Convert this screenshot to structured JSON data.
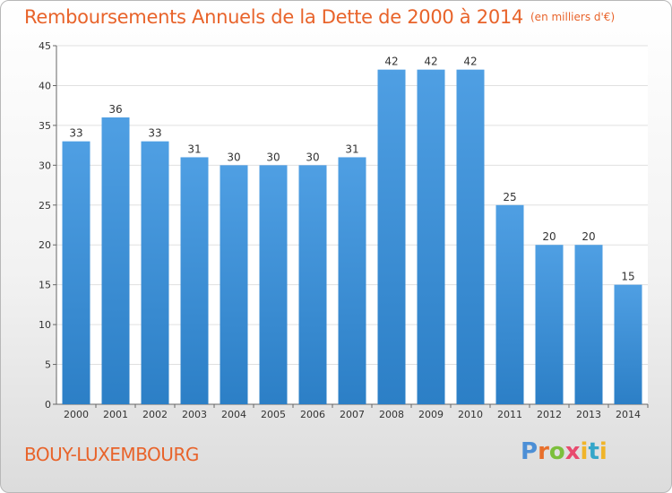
{
  "chart_data": {
    "type": "bar",
    "title": "Remboursements Annuels de la Dette de 2000 à 2014",
    "unit_note": "(en milliers d'€)",
    "categories": [
      "2000",
      "2001",
      "2002",
      "2003",
      "2004",
      "2005",
      "2006",
      "2007",
      "2008",
      "2009",
      "2010",
      "2011",
      "2012",
      "2013",
      "2014"
    ],
    "values": [
      33,
      36,
      33,
      31,
      30,
      30,
      30,
      31,
      42,
      42,
      42,
      25,
      20,
      20,
      15
    ],
    "ylim": [
      0,
      45
    ],
    "yticks": [
      0,
      5,
      10,
      15,
      20,
      25,
      30,
      35,
      40,
      45
    ],
    "grid": true,
    "bar_color": "#4f9fe3",
    "bar_color_dark": "#2c7fc6"
  },
  "commune": "BOUY-LUXEMBOURG",
  "logo": {
    "text": "Proxiti",
    "colors": [
      "#4c8fd6",
      "#e86f2b",
      "#7cbf3c",
      "#e84a6e",
      "#f0b429",
      "#34a6c9"
    ]
  }
}
